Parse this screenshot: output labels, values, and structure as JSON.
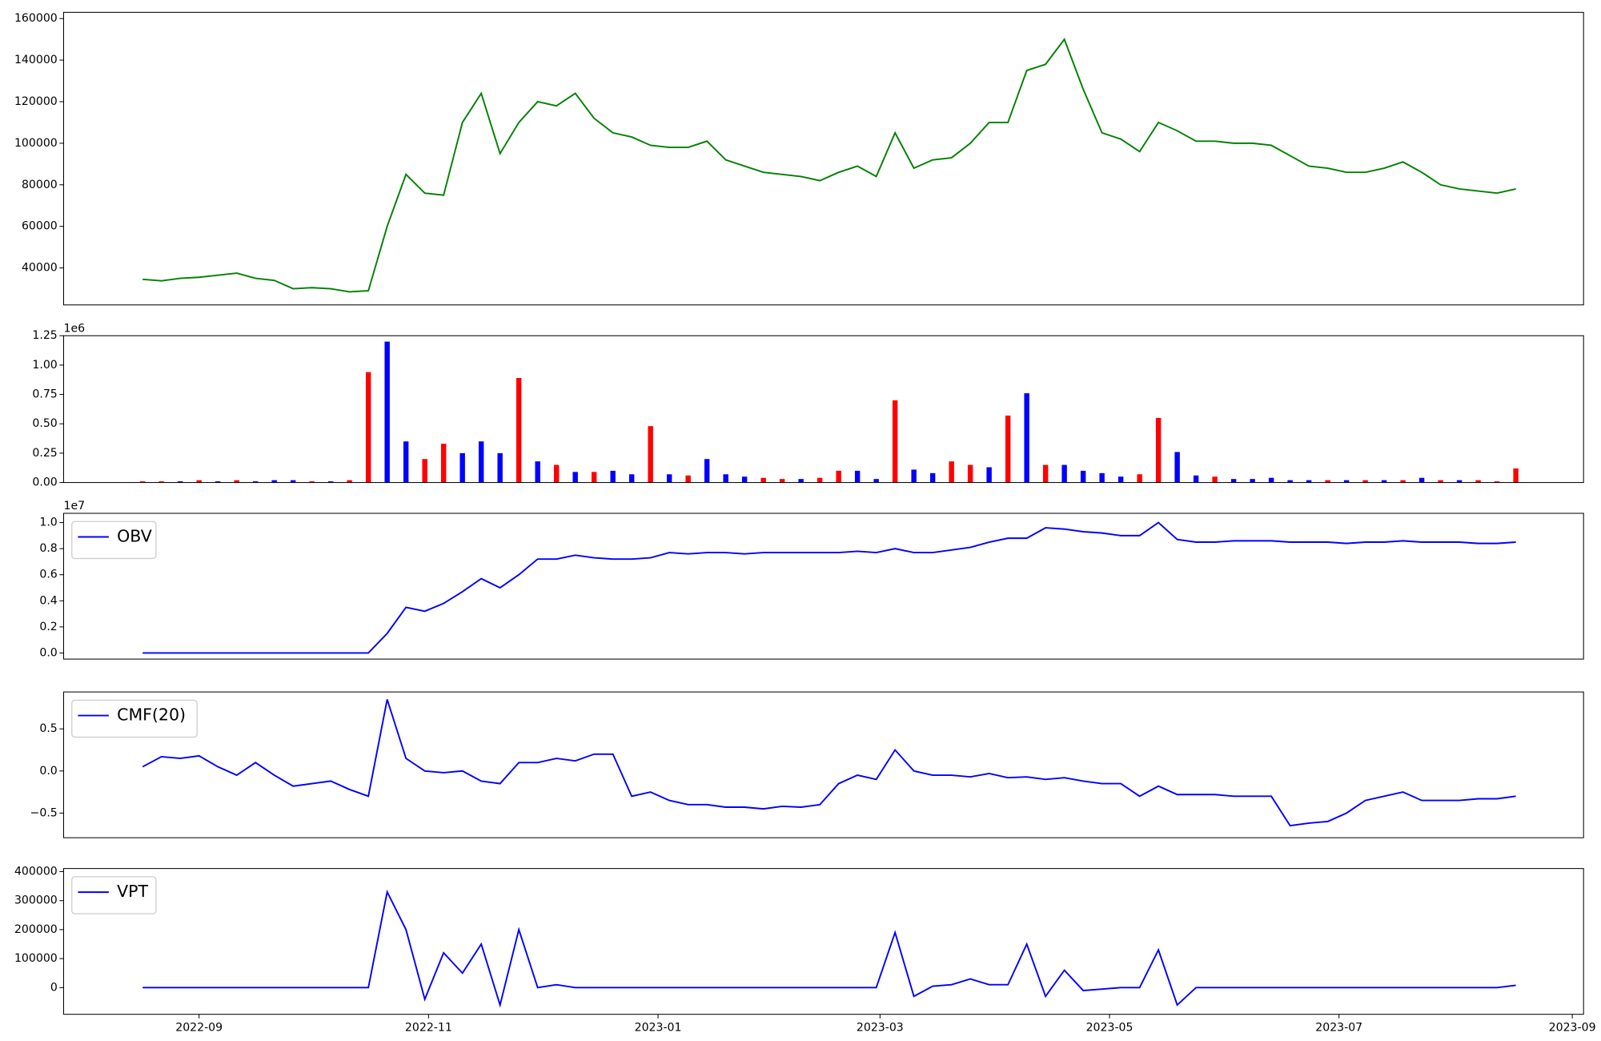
{
  "chart_data": [
    {
      "type": "line",
      "color": "#008000",
      "x": [
        -15,
        -10,
        -5,
        0,
        5,
        10,
        15,
        20,
        25,
        30,
        35,
        40,
        45,
        50,
        55,
        60,
        65,
        70,
        75,
        80,
        85,
        90,
        95,
        100,
        105,
        110,
        115,
        120,
        125,
        130,
        135,
        140,
        145,
        150,
        155,
        160,
        165,
        170,
        175,
        180,
        185,
        190,
        195,
        200,
        205,
        210,
        215,
        220,
        225,
        230,
        235,
        240,
        245,
        250,
        255,
        260,
        265,
        270,
        275,
        280,
        285,
        290,
        295,
        300,
        305,
        310,
        315,
        320,
        325,
        330,
        335,
        340,
        345,
        350
      ],
      "values": [
        34500,
        33800,
        35000,
        35500,
        36500,
        37500,
        35000,
        34000,
        30000,
        30500,
        30000,
        28500,
        29000,
        60000,
        85000,
        76000,
        75000,
        110000,
        124000,
        95000,
        110000,
        120000,
        118000,
        124000,
        112000,
        105000,
        103000,
        99000,
        98000,
        98000,
        101000,
        92000,
        89000,
        86000,
        85000,
        84000,
        82000,
        86000,
        89000,
        84000,
        105000,
        88000,
        92000,
        93000,
        100000,
        110000,
        110000,
        135000,
        138000,
        150000,
        126000,
        105000,
        102000,
        96000,
        110000,
        106000,
        101000,
        101000,
        100000,
        100000,
        99000,
        94000,
        89000,
        88000,
        86000,
        86000,
        88000,
        91000,
        86000,
        80000,
        78000,
        77000,
        76000,
        78000
      ],
      "xlim": [
        -36,
        368
      ],
      "ylim": [
        22200,
        163000
      ],
      "yticks": [
        40000,
        60000,
        80000,
        100000,
        120000,
        140000,
        160000
      ]
    },
    {
      "type": "bar",
      "offset_label": "1e6",
      "x": [
        -15,
        -10,
        -5,
        0,
        5,
        10,
        15,
        20,
        25,
        30,
        35,
        40,
        45,
        50,
        55,
        60,
        65,
        70,
        75,
        80,
        85,
        90,
        95,
        100,
        105,
        110,
        115,
        120,
        125,
        130,
        135,
        140,
        145,
        150,
        155,
        160,
        165,
        170,
        175,
        180,
        185,
        190,
        195,
        200,
        205,
        210,
        215,
        220,
        225,
        230,
        235,
        240,
        245,
        250,
        255,
        260,
        265,
        270,
        275,
        280,
        285,
        290,
        295,
        300,
        305,
        310,
        315,
        320,
        325,
        330,
        335,
        340,
        345,
        350
      ],
      "values": [
        0.01,
        0.01,
        0.01,
        0.02,
        0.01,
        0.02,
        0.01,
        0.02,
        0.02,
        0.01,
        0.01,
        0.02,
        0.94,
        1.2,
        0.35,
        0.2,
        0.33,
        0.25,
        0.35,
        0.25,
        0.89,
        0.18,
        0.15,
        0.09,
        0.09,
        0.1,
        0.07,
        0.48,
        0.07,
        0.06,
        0.2,
        0.07,
        0.05,
        0.04,
        0.03,
        0.03,
        0.04,
        0.1,
        0.1,
        0.03,
        0.7,
        0.11,
        0.08,
        0.18,
        0.15,
        0.13,
        0.57,
        0.76,
        0.15,
        0.15,
        0.1,
        0.08,
        0.05,
        0.07,
        0.55,
        0.26,
        0.06,
        0.05,
        0.03,
        0.03,
        0.04,
        0.02,
        0.02,
        0.02,
        0.02,
        0.02,
        0.02,
        0.02,
        0.04,
        0.02,
        0.02,
        0.02,
        0.01,
        0.12
      ],
      "colors": [
        "#ff0000",
        "#ff0000",
        "#0000ff",
        "#ff0000",
        "#0000ff",
        "#ff0000",
        "#0000ff",
        "#0000ff",
        "#0000ff",
        "#ff0000",
        "#0000ff",
        "#ff0000",
        "#ff0000",
        "#0000ff",
        "#0000ff",
        "#ff0000",
        "#ff0000",
        "#0000ff",
        "#0000ff",
        "#0000ff",
        "#ff0000",
        "#0000ff",
        "#ff0000",
        "#0000ff",
        "#ff0000",
        "#0000ff",
        "#0000ff",
        "#ff0000",
        "#0000ff",
        "#ff0000",
        "#0000ff",
        "#0000ff",
        "#0000ff",
        "#ff0000",
        "#ff0000",
        "#0000ff",
        "#ff0000",
        "#ff0000",
        "#0000ff",
        "#0000ff",
        "#ff0000",
        "#0000ff",
        "#0000ff",
        "#ff0000",
        "#ff0000",
        "#0000ff",
        "#ff0000",
        "#0000ff",
        "#ff0000",
        "#0000ff",
        "#0000ff",
        "#0000ff",
        "#0000ff",
        "#ff0000",
        "#ff0000",
        "#0000ff",
        "#0000ff",
        "#ff0000",
        "#0000ff",
        "#0000ff",
        "#0000ff",
        "#0000ff",
        "#0000ff",
        "#ff0000",
        "#0000ff",
        "#ff0000",
        "#0000ff",
        "#ff0000",
        "#0000ff",
        "#ff0000",
        "#0000ff",
        "#ff0000",
        "#ff0000",
        "#ff0000"
      ],
      "xlim": [
        -36,
        368
      ],
      "ylim": [
        0,
        1.25
      ],
      "yticks": [
        {
          "value": 0,
          "label": "0.00"
        },
        0.25,
        {
          "value": 0.5,
          "label": "0.50"
        },
        0.75,
        {
          "value": 1,
          "label": "1.00"
        },
        1.25
      ]
    },
    {
      "type": "line",
      "offset_label": "1e7",
      "legend": "upper left",
      "x": [
        -15,
        -10,
        -5,
        0,
        5,
        10,
        15,
        20,
        25,
        30,
        35,
        40,
        45,
        50,
        55,
        60,
        65,
        70,
        75,
        80,
        85,
        90,
        95,
        100,
        105,
        110,
        115,
        120,
        125,
        130,
        135,
        140,
        145,
        150,
        155,
        160,
        165,
        170,
        175,
        180,
        185,
        190,
        195,
        200,
        205,
        210,
        215,
        220,
        225,
        230,
        235,
        240,
        245,
        250,
        255,
        260,
        265,
        270,
        275,
        280,
        285,
        290,
        295,
        300,
        305,
        310,
        315,
        320,
        325,
        330,
        335,
        340,
        345,
        350
      ],
      "series": [
        {
          "name": "OBV",
          "color": "#0000ff",
          "values": [
            0,
            0,
            0,
            0,
            0,
            0,
            0,
            0,
            0,
            0,
            0,
            0,
            0,
            0.15,
            0.35,
            0.32,
            0.38,
            0.47,
            0.57,
            0.5,
            0.6,
            0.72,
            0.72,
            0.75,
            0.73,
            0.72,
            0.72,
            0.73,
            0.77,
            0.76,
            0.77,
            0.77,
            0.76,
            0.77,
            0.77,
            0.77,
            0.77,
            0.77,
            0.78,
            0.77,
            0.8,
            0.77,
            0.77,
            0.79,
            0.81,
            0.85,
            0.88,
            0.88,
            0.96,
            0.95,
            0.93,
            0.92,
            0.9,
            0.9,
            1.0,
            0.87,
            0.85,
            0.85,
            0.86,
            0.86,
            0.86,
            0.85,
            0.85,
            0.85,
            0.84,
            0.85,
            0.85,
            0.86,
            0.85,
            0.85,
            0.85,
            0.84,
            0.84,
            0.85
          ]
        }
      ],
      "xlim": [
        -36,
        368
      ],
      "ylim": [
        -0.047,
        1.071
      ],
      "yticks": [
        {
          "value": 0,
          "label": "0.0"
        },
        0.2,
        0.4,
        0.6,
        0.8,
        {
          "value": 1,
          "label": "1.0"
        }
      ]
    },
    {
      "type": "line",
      "legend": "upper left",
      "x": [
        -15,
        -10,
        -5,
        0,
        5,
        10,
        15,
        20,
        25,
        30,
        35,
        40,
        45,
        50,
        55,
        60,
        65,
        70,
        75,
        80,
        85,
        90,
        95,
        100,
        105,
        110,
        115,
        120,
        125,
        130,
        135,
        140,
        145,
        150,
        155,
        160,
        165,
        170,
        175,
        180,
        185,
        190,
        195,
        200,
        205,
        210,
        215,
        220,
        225,
        230,
        235,
        240,
        245,
        250,
        255,
        260,
        265,
        270,
        275,
        280,
        285,
        290,
        295,
        300,
        305,
        310,
        315,
        320,
        325,
        330,
        335,
        340,
        345,
        350
      ],
      "series": [
        {
          "name": "CMF(20)",
          "color": "#0000ff",
          "values": [
            0.05,
            0.17,
            0.15,
            0.18,
            0.05,
            -0.05,
            0.1,
            -0.05,
            -0.18,
            -0.15,
            -0.12,
            -0.22,
            -0.3,
            0.85,
            0.15,
            0,
            -0.02,
            0,
            -0.12,
            -0.15,
            0.1,
            0.1,
            0.15,
            0.12,
            0.2,
            0.2,
            -0.3,
            -0.25,
            -0.35,
            -0.4,
            -0.4,
            -0.43,
            -0.43,
            -0.45,
            -0.42,
            -0.43,
            -0.4,
            -0.15,
            -0.05,
            -0.1,
            0.25,
            0,
            -0.05,
            -0.05,
            -0.07,
            -0.03,
            -0.08,
            -0.07,
            -0.1,
            -0.08,
            -0.12,
            -0.15,
            -0.15,
            -0.3,
            -0.18,
            -0.28,
            -0.28,
            -0.28,
            -0.3,
            -0.3,
            -0.3,
            -0.65,
            -0.62,
            -0.6,
            -0.5,
            -0.35,
            -0.3,
            -0.25,
            -0.35,
            -0.35,
            -0.35,
            -0.33,
            -0.33,
            -0.3
          ]
        }
      ],
      "xlim": [
        -36,
        368
      ],
      "ylim": [
        -0.793,
        0.939
      ],
      "yticks": [
        {
          "value": -0.5,
          "label": "−0.5"
        },
        {
          "value": 0,
          "label": "0.0"
        },
        0.5
      ]
    },
    {
      "type": "line",
      "legend": "upper left",
      "x": [
        -15,
        -10,
        -5,
        0,
        5,
        10,
        15,
        20,
        25,
        30,
        35,
        40,
        45,
        50,
        55,
        60,
        65,
        70,
        75,
        80,
        85,
        90,
        95,
        100,
        105,
        110,
        115,
        120,
        125,
        130,
        135,
        140,
        145,
        150,
        155,
        160,
        165,
        170,
        175,
        180,
        185,
        190,
        195,
        200,
        205,
        210,
        215,
        220,
        225,
        230,
        235,
        240,
        245,
        250,
        255,
        260,
        265,
        270,
        275,
        280,
        285,
        290,
        295,
        300,
        305,
        310,
        315,
        320,
        325,
        330,
        335,
        340,
        345,
        350
      ],
      "series": [
        {
          "name": "VPT",
          "color": "#0000ff",
          "values": [
            0,
            0,
            0,
            0,
            0,
            0,
            0,
            0,
            0,
            0,
            0,
            0,
            0,
            330000,
            200000,
            -40000,
            120000,
            50000,
            150000,
            -60000,
            200000,
            0,
            10000,
            0,
            0,
            0,
            0,
            0,
            0,
            0,
            0,
            0,
            0,
            0,
            0,
            0,
            0,
            0,
            0,
            0,
            190000,
            -30000,
            5000,
            10000,
            30000,
            10000,
            10000,
            150000,
            -30000,
            60000,
            -10000,
            -5000,
            0,
            0,
            130000,
            -60000,
            0,
            0,
            0,
            0,
            0,
            0,
            0,
            0,
            0,
            0,
            0,
            0,
            0,
            0,
            0,
            0,
            0,
            8000
          ]
        }
      ],
      "xlim": [
        -36,
        368
      ],
      "ylim": [
        -92000,
        410600
      ],
      "yticks": [
        0,
        100000,
        200000,
        300000,
        400000
      ],
      "xticks": [
        {
          "value": 0,
          "label": "2022-09"
        },
        {
          "value": 61,
          "label": "2022-11"
        },
        {
          "value": 122,
          "label": "2023-01"
        },
        {
          "value": 181,
          "label": "2023-03"
        },
        {
          "value": 242,
          "label": "2023-05"
        },
        {
          "value": 303,
          "label": "2023-07"
        },
        {
          "value": 365,
          "label": "2023-09"
        }
      ]
    }
  ]
}
